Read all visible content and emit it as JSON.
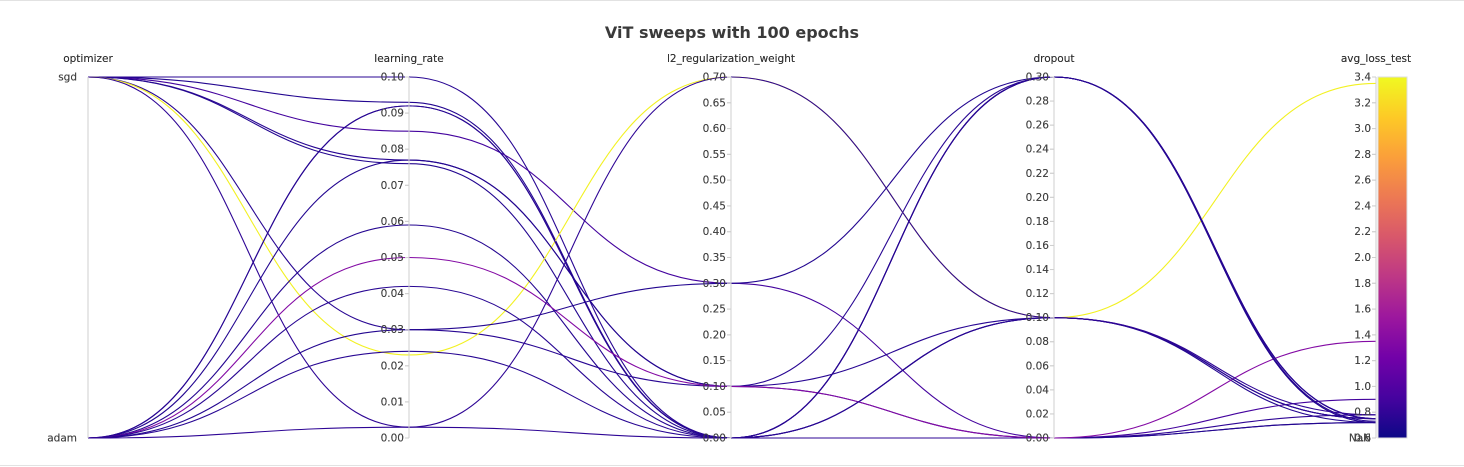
{
  "chart_data": {
    "type": "parallel_coordinates",
    "title": "ViT sweeps with 100 epochs",
    "axes": [
      {
        "key": "optimizer",
        "label": "optimizer",
        "kind": "categorical",
        "categories": [
          "sgd",
          "adam"
        ]
      },
      {
        "key": "learning_rate",
        "label": "learning_rate",
        "kind": "numeric",
        "range": [
          0,
          0.1
        ],
        "ticks": [
          "0.00",
          "0.01",
          "0.02",
          "0.03",
          "0.04",
          "0.05",
          "0.06",
          "0.07",
          "0.08",
          "0.09",
          "0.10"
        ]
      },
      {
        "key": "l2_regularization_weight",
        "label": "l2_regularization_weight",
        "kind": "numeric",
        "range": [
          0,
          0.7
        ],
        "ticks": [
          "0.00",
          "0.05",
          "0.10",
          "0.15",
          "0.20",
          "0.25",
          "0.30",
          "0.35",
          "0.40",
          "0.45",
          "0.50",
          "0.55",
          "0.60",
          "0.65",
          "0.70"
        ]
      },
      {
        "key": "dropout",
        "label": "dropout",
        "kind": "numeric",
        "range": [
          0,
          0.3
        ],
        "ticks": [
          "0.00",
          "0.02",
          "0.04",
          "0.06",
          "0.08",
          "0.10",
          "0.12",
          "0.14",
          "0.16",
          "0.18",
          "0.20",
          "0.22",
          "0.24",
          "0.26",
          "0.28",
          "0.30"
        ]
      },
      {
        "key": "avg_loss_test",
        "label": "avg_loss_test",
        "kind": "numeric",
        "range": [
          0.6,
          3.4
        ],
        "ticks": [
          "0.6",
          "0.8",
          "1.0",
          "1.2",
          "1.4",
          "1.6",
          "1.8",
          "2.0",
          "2.2",
          "2.4",
          "2.6",
          "2.8",
          "3.0",
          "3.2",
          "3.4"
        ],
        "nan_label": "NaN"
      }
    ],
    "colorscale": {
      "name": "plasma",
      "min": 0.6,
      "max": 3.4,
      "stops": [
        "#0d0887",
        "#46039f",
        "#7201a8",
        "#9c179e",
        "#bd3786",
        "#d8576b",
        "#ed7953",
        "#fb9f3a",
        "#fdca26",
        "#f0f921"
      ]
    },
    "runs": [
      {
        "optimizer": "sgd",
        "learning_rate": 0.1,
        "l2_regularization_weight": 0.0,
        "dropout": 0.3,
        "avg_loss_test": 0.75
      },
      {
        "optimizer": "sgd",
        "learning_rate": 0.093,
        "l2_regularization_weight": 0.0,
        "dropout": 0.1,
        "avg_loss_test": 0.72
      },
      {
        "optimizer": "sgd",
        "learning_rate": 0.085,
        "l2_regularization_weight": 0.3,
        "dropout": 0.0,
        "avg_loss_test": 0.9
      },
      {
        "optimizer": "sgd",
        "learning_rate": 0.077,
        "l2_regularization_weight": 0.1,
        "dropout": 0.3,
        "avg_loss_test": 0.75
      },
      {
        "optimizer": "sgd",
        "learning_rate": 0.076,
        "l2_regularization_weight": 0.0,
        "dropout": 0.0,
        "avg_loss_test": 0.72
      },
      {
        "optimizer": "sgd",
        "learning_rate": 0.03,
        "l2_regularization_weight": 0.1,
        "dropout": 0.1,
        "avg_loss_test": 0.75
      },
      {
        "optimizer": "sgd",
        "learning_rate": 0.023,
        "l2_regularization_weight": 0.7,
        "dropout": 0.1,
        "avg_loss_test": 3.35
      },
      {
        "optimizer": "sgd",
        "learning_rate": 0.003,
        "l2_regularization_weight": 0.0,
        "dropout": 0.0,
        "avg_loss_test": 0.78
      },
      {
        "optimizer": "adam",
        "learning_rate": 0.092,
        "l2_regularization_weight": 0.0,
        "dropout": 0.3,
        "avg_loss_test": 0.72
      },
      {
        "optimizer": "adam",
        "learning_rate": 0.092,
        "l2_regularization_weight": 0.0,
        "dropout": 0.1,
        "avg_loss_test": 0.75
      },
      {
        "optimizer": "adam",
        "learning_rate": 0.077,
        "l2_regularization_weight": 0.1,
        "dropout": 0.0,
        "avg_loss_test": 0.72
      },
      {
        "optimizer": "adam",
        "learning_rate": 0.059,
        "l2_regularization_weight": 0.0,
        "dropout": 0.3,
        "avg_loss_test": 0.73
      },
      {
        "optimizer": "adam",
        "learning_rate": 0.05,
        "l2_regularization_weight": 0.1,
        "dropout": 0.0,
        "avg_loss_test": 1.35
      },
      {
        "optimizer": "adam",
        "learning_rate": 0.042,
        "l2_regularization_weight": 0.0,
        "dropout": 0.1,
        "avg_loss_test": 0.75
      },
      {
        "optimizer": "adam",
        "learning_rate": 0.03,
        "l2_regularization_weight": 0.3,
        "dropout": 0.3,
        "avg_loss_test": 0.72
      },
      {
        "optimizer": "adam",
        "learning_rate": 0.024,
        "l2_regularization_weight": 0.0,
        "dropout": 0.3,
        "avg_loss_test": 0.75
      },
      {
        "optimizer": "adam",
        "learning_rate": 0.003,
        "l2_regularization_weight": 0.7,
        "dropout": 0.1,
        "avg_loss_test": 0.78
      }
    ]
  }
}
